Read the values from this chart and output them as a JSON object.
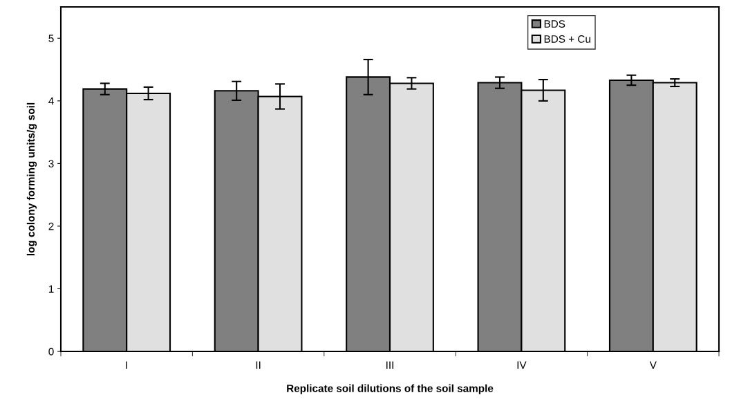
{
  "chart_data": {
    "type": "bar",
    "xlabel": "Replicate soil dilutions of the soil sample",
    "ylabel": "log colony forming units/g soil",
    "categories": [
      "I",
      "II",
      "III",
      "IV",
      "V"
    ],
    "series": [
      {
        "name": "BDS",
        "color": "#808080",
        "values": [
          4.19,
          4.16,
          4.38,
          4.29,
          4.33
        ],
        "errors": [
          0.09,
          0.15,
          0.28,
          0.09,
          0.08
        ]
      },
      {
        "name": "BDS + Cu",
        "color": "#e0e0e0",
        "values": [
          4.12,
          4.07,
          4.28,
          4.17,
          4.29
        ],
        "errors": [
          0.1,
          0.2,
          0.09,
          0.17,
          0.06
        ]
      }
    ],
    "ylim": [
      0,
      5.5
    ],
    "yticks": [
      0,
      1,
      2,
      3,
      4,
      5
    ],
    "grid": false,
    "legend": "top right"
  }
}
